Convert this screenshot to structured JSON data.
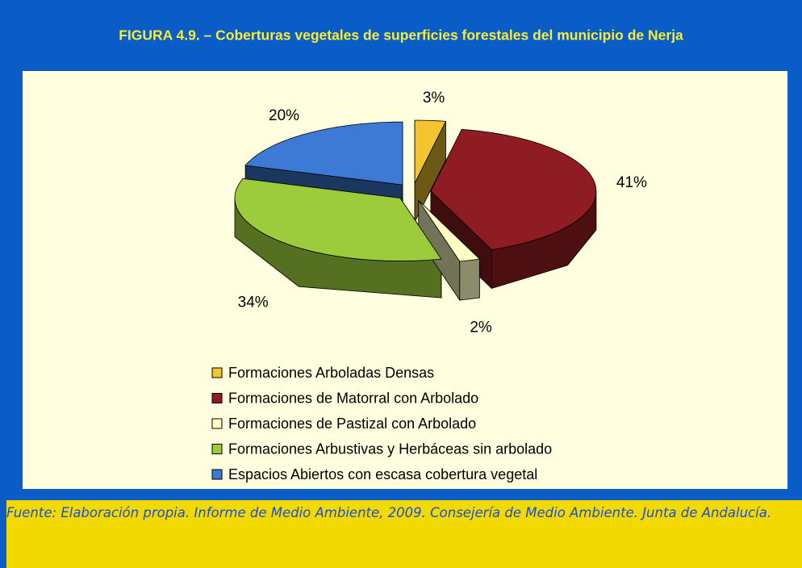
{
  "chart_data": {
    "type": "pie3d",
    "title": "FIGURA 4.9. –  Coberturas vegetales de superficies forestales del municipio de Nerja",
    "categories": [
      "Formaciones Arboladas Densas",
      "Formaciones de Matorral con Arbolado",
      "Formaciones de Pastizal con Arbolado",
      "Formaciones Arbustivas y Herbáceas sin arbolado",
      "Espacios Abiertos con escasa cobertura vegetal"
    ],
    "values": [
      3,
      41,
      2,
      34,
      20
    ],
    "value_labels": [
      "3%",
      "41%",
      "2%",
      "34%",
      "20%"
    ],
    "colors": [
      "#f4c430",
      "#8e1c22",
      "#ffffc4",
      "#9ccc3c",
      "#3d7ad6"
    ],
    "legend": "bottom",
    "source": "Fuente: Elaboración propia. Informe de Medio Ambiente, 2009. Consejería de Medio Ambiente. Junta de Andalucía."
  }
}
